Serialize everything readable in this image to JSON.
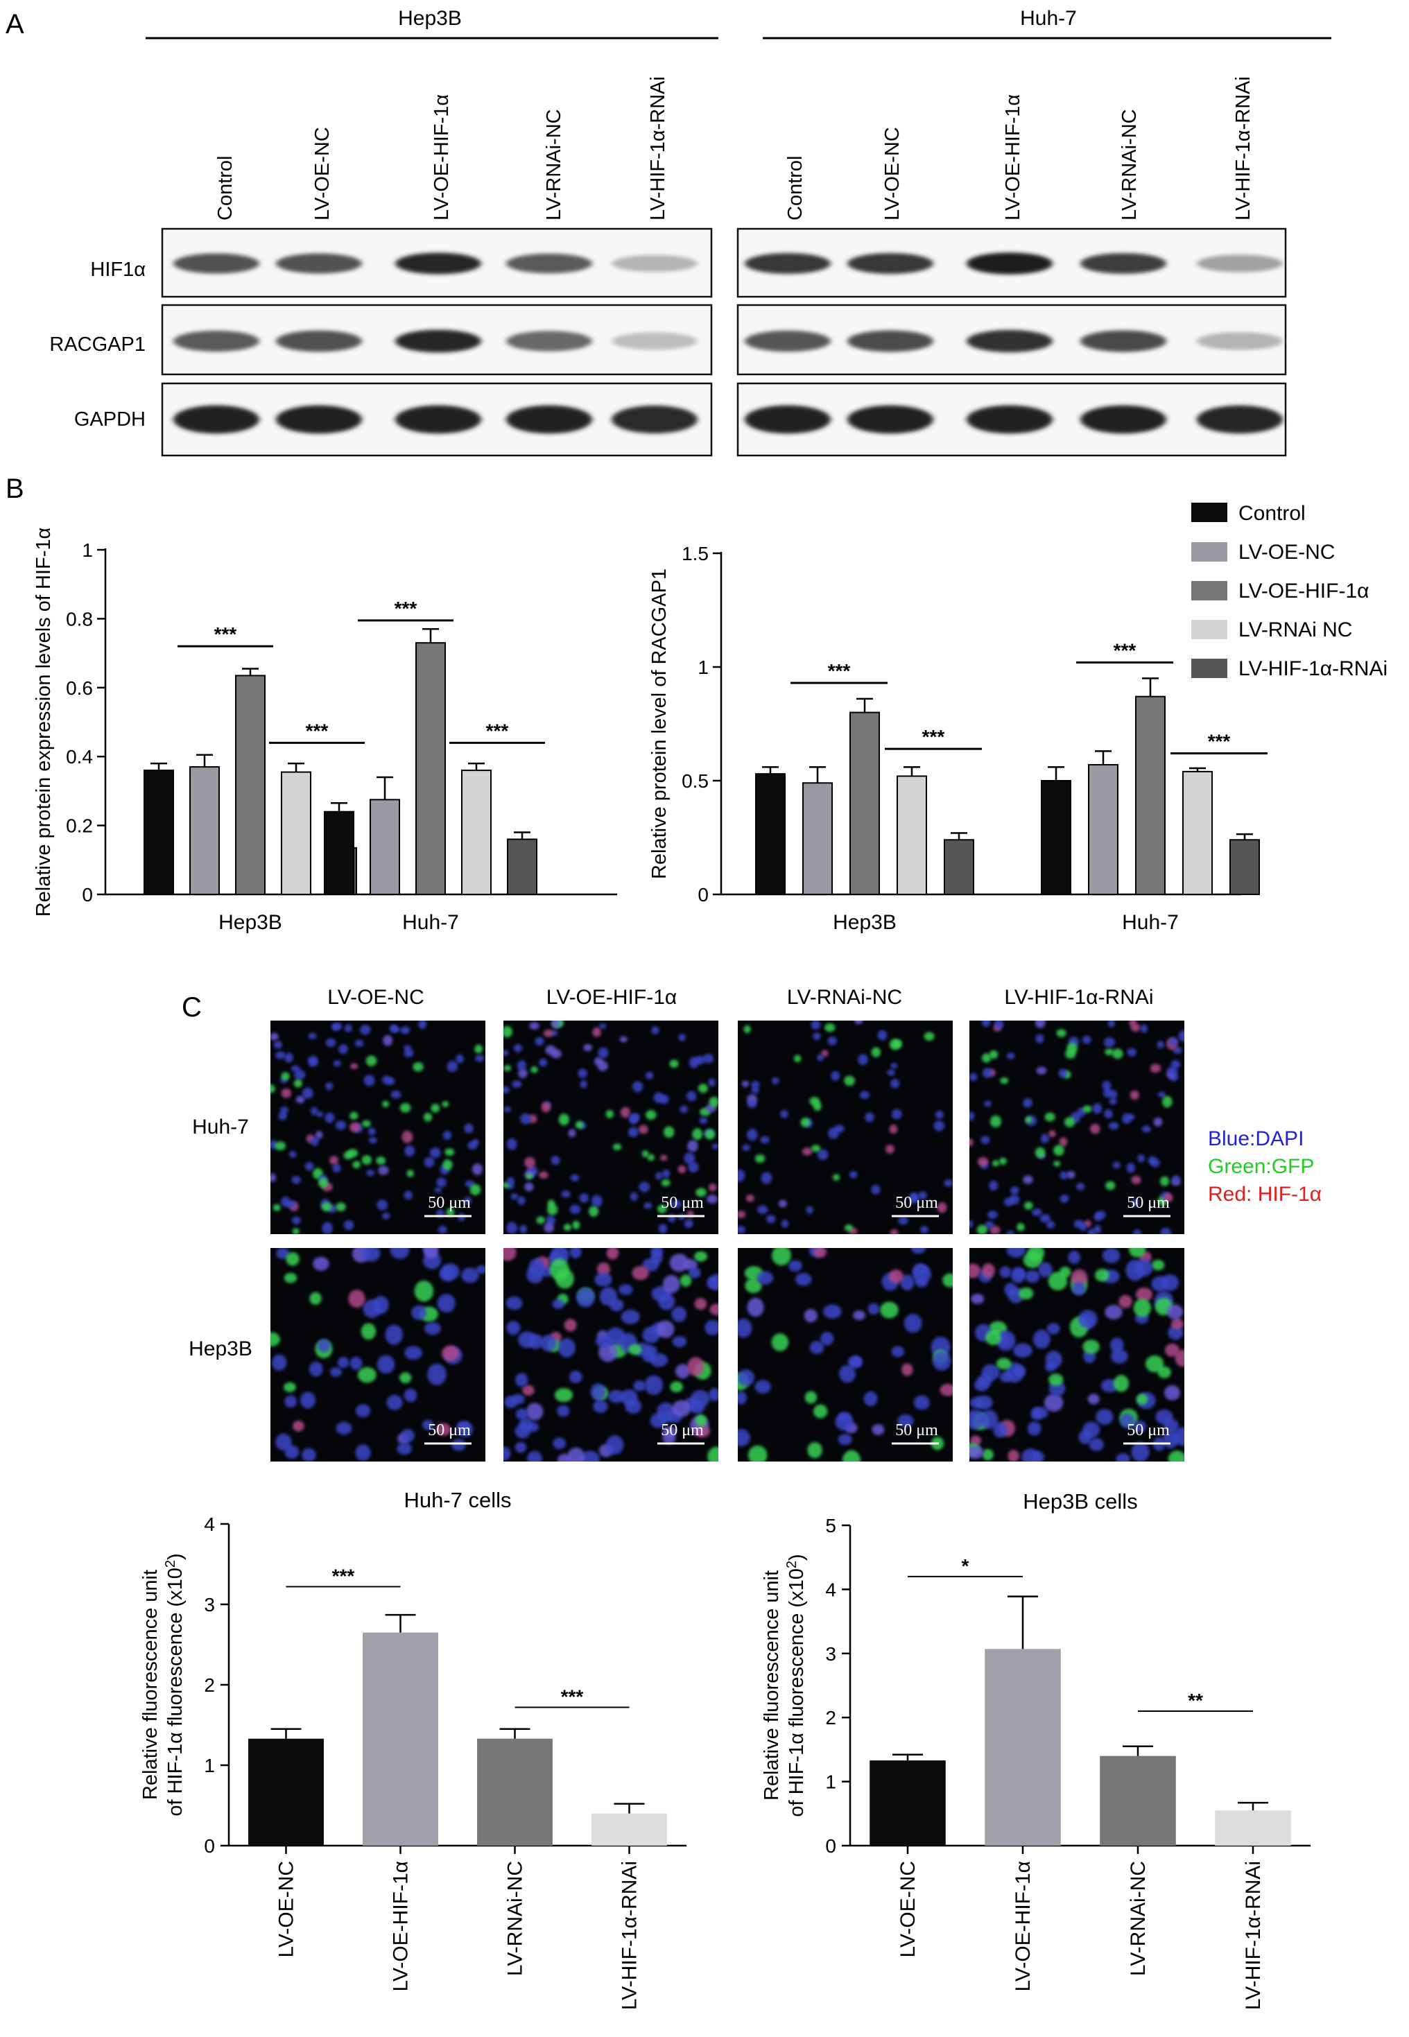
{
  "panels": {
    "a": "A",
    "b": "B",
    "c": "C"
  },
  "western_blot": {
    "cell_lines": [
      "Hep3B",
      "Huh-7"
    ],
    "lanes": [
      "Control",
      "LV-OE-NC",
      "LV-OE-HIF-1α",
      "LV-RNAi-NC",
      "LV-HIF-1α-RNAi"
    ],
    "proteins": [
      "HIF1α",
      "RACGAP1",
      "GAPDH"
    ],
    "band_intensity": {
      "Hep3B": {
        "HIF1α": [
          0.72,
          0.72,
          0.9,
          0.68,
          0.3
        ],
        "RACGAP1": [
          0.68,
          0.72,
          0.9,
          0.62,
          0.26
        ],
        "GAPDH": [
          0.92,
          0.92,
          0.92,
          0.92,
          0.88
        ]
      },
      "Huh-7": {
        "HIF1α": [
          0.82,
          0.82,
          0.95,
          0.8,
          0.38
        ],
        "RACGAP1": [
          0.7,
          0.74,
          0.85,
          0.75,
          0.3
        ],
        "GAPDH": [
          0.92,
          0.92,
          0.92,
          0.92,
          0.9
        ]
      }
    }
  },
  "legend": {
    "entries": [
      "Control",
      "LV-OE-NC",
      "LV-OE-HIF-1α",
      "LV-RNAi NC",
      "LV-HIF-1α-RNAi"
    ],
    "colors": [
      "#0c0c0c",
      "#9a9aa4",
      "#767676",
      "#d4d4d4",
      "#565656"
    ]
  },
  "fluorescence": {
    "columns": [
      "LV-OE-NC",
      "LV-OE-HIF-1α",
      "LV-RNAi-NC",
      "LV-HIF-1α-RNAi"
    ],
    "rows": [
      "Huh-7",
      "Hep3B"
    ],
    "scale_bar": "50 μm",
    "channel_legend": [
      {
        "label": "Blue:DAPI",
        "color": "#2222dd"
      },
      {
        "label": "Green:GFP",
        "color": "#22cc22"
      },
      {
        "label": "Red: HIF-1α",
        "color": "#e02020"
      }
    ]
  },
  "chart_data": [
    {
      "id": "b-left",
      "type": "bar",
      "ylabel": "Relative protein expression levels of HIF-1α",
      "categories": [
        "Hep3B",
        "Huh-7"
      ],
      "ylim": [
        0,
        1.0
      ],
      "yticks": [
        0.0,
        0.2,
        0.4,
        0.6,
        0.8,
        1.0
      ],
      "series": [
        {
          "name": "Control",
          "values": [
            0.36,
            0.24
          ],
          "errors": [
            0.02,
            0.025
          ]
        },
        {
          "name": "LV-OE-NC",
          "values": [
            0.37,
            0.275
          ],
          "errors": [
            0.035,
            0.065
          ]
        },
        {
          "name": "LV-OE-HIF-1α",
          "values": [
            0.635,
            0.73
          ],
          "errors": [
            0.02,
            0.04
          ]
        },
        {
          "name": "LV-RNAi NC",
          "values": [
            0.355,
            0.36
          ],
          "errors": [
            0.025,
            0.02
          ]
        },
        {
          "name": "LV-HIF-1α-RNAi",
          "values": [
            0.135,
            0.16
          ],
          "errors": [
            0.01,
            0.02
          ]
        }
      ],
      "significance": [
        {
          "category": 0,
          "from": 1,
          "to": 2,
          "label": "***",
          "y": 0.72
        },
        {
          "category": 0,
          "from": 3,
          "to": 4,
          "label": "***",
          "y": 0.44
        },
        {
          "category": 1,
          "from": 1,
          "to": 2,
          "label": "***",
          "y": 0.795
        },
        {
          "category": 1,
          "from": 3,
          "to": 4,
          "label": "***",
          "y": 0.44
        }
      ]
    },
    {
      "id": "b-right",
      "type": "bar",
      "ylabel": "Relative protein level of RACGAP1",
      "categories": [
        "Hep3B",
        "Huh-7"
      ],
      "ylim": [
        0,
        1.5
      ],
      "yticks": [
        0.0,
        0.5,
        1.0,
        1.5
      ],
      "series": [
        {
          "name": "Control",
          "values": [
            0.53,
            0.5
          ],
          "errors": [
            0.03,
            0.06
          ]
        },
        {
          "name": "LV-OE-NC",
          "values": [
            0.49,
            0.57
          ],
          "errors": [
            0.07,
            0.06
          ]
        },
        {
          "name": "LV-OE-HIF-1α",
          "values": [
            0.8,
            0.87
          ],
          "errors": [
            0.06,
            0.08
          ]
        },
        {
          "name": "LV-RNAi NC",
          "values": [
            0.52,
            0.54
          ],
          "errors": [
            0.04,
            0.015
          ]
        },
        {
          "name": "LV-HIF-1α-RNAi",
          "values": [
            0.24,
            0.24
          ],
          "errors": [
            0.03,
            0.025
          ]
        }
      ],
      "significance": [
        {
          "category": 0,
          "from": 1,
          "to": 2,
          "label": "***",
          "y": 0.93
        },
        {
          "category": 0,
          "from": 3,
          "to": 4,
          "label": "***",
          "y": 0.64
        },
        {
          "category": 1,
          "from": 1,
          "to": 2,
          "label": "***",
          "y": 1.02
        },
        {
          "category": 1,
          "from": 3,
          "to": 4,
          "label": "***",
          "y": 0.62
        }
      ]
    },
    {
      "id": "c-left",
      "type": "bar",
      "title": "Huh-7 cells",
      "ylabel_line1": "Relative fluorescence unit",
      "ylabel_line2": "of HIF-1α fluorescence (x10",
      "ylabel_sup": "2",
      "ylabel_close": ")",
      "categories": [
        "LV-OE-NC",
        "LV-OE-HIF-1α",
        "LV-RNAi-NC",
        "LV-HIF-1α-RNAi"
      ],
      "values": [
        1.33,
        2.65,
        1.33,
        0.4
      ],
      "errors": [
        0.12,
        0.22,
        0.12,
        0.12
      ],
      "colors": [
        "#0c0c0c",
        "#a0a0aa",
        "#777777",
        "#dcdcdc"
      ],
      "ylim": [
        0,
        4
      ],
      "yticks": [
        0,
        1,
        2,
        3,
        4
      ],
      "significance": [
        {
          "from": 0,
          "to": 1,
          "label": "***",
          "y": 3.22
        },
        {
          "from": 2,
          "to": 3,
          "label": "***",
          "y": 1.72
        }
      ]
    },
    {
      "id": "c-right",
      "type": "bar",
      "title": "Hep3B cells",
      "ylabel_line1": "Relative fluorescence unit",
      "ylabel_line2": "of HIF-1α fluorescence (x10",
      "ylabel_sup": "2",
      "ylabel_close": ")",
      "categories": [
        "LV-OE-NC",
        "LV-OE-HIF-1α",
        "LV-RNAi-NC",
        "LV-HIF-1α-RNAi"
      ],
      "values": [
        1.33,
        3.07,
        1.4,
        0.55
      ],
      "errors": [
        0.09,
        0.82,
        0.15,
        0.12
      ],
      "colors": [
        "#0c0c0c",
        "#a0a0aa",
        "#777777",
        "#dcdcdc"
      ],
      "ylim": [
        0,
        5
      ],
      "yticks": [
        0,
        1,
        2,
        3,
        4,
        5
      ],
      "significance": [
        {
          "from": 0,
          "to": 1,
          "label": "*",
          "y": 4.2
        },
        {
          "from": 2,
          "to": 3,
          "label": "**",
          "y": 2.1
        }
      ]
    }
  ]
}
